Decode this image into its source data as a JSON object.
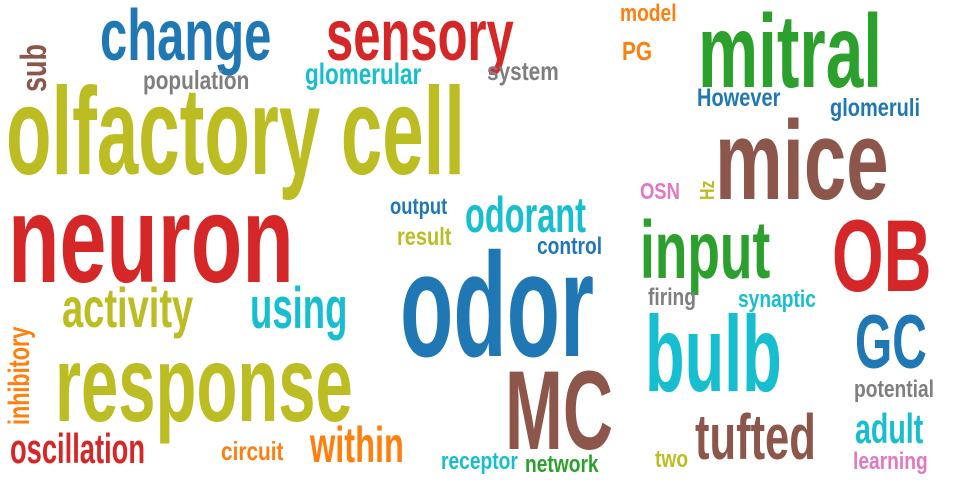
{
  "colors": {
    "olive": "#bcbd22",
    "red": "#d62728",
    "blue": "#1f77b4",
    "green": "#2ca02c",
    "brown": "#8c564b",
    "cyan": "#17becf",
    "orange": "#ff7f0e",
    "gray": "#7f7f7f",
    "pink": "#e377c2"
  },
  "words": [
    {
      "text": "olfactory cell",
      "color": "olive"
    },
    {
      "text": "neuron",
      "color": "red"
    },
    {
      "text": "response",
      "color": "olive"
    },
    {
      "text": "odor",
      "color": "blue"
    },
    {
      "text": "mitral",
      "color": "green"
    },
    {
      "text": "mice",
      "color": "brown"
    },
    {
      "text": "sensory",
      "color": "red"
    },
    {
      "text": "change",
      "color": "blue"
    },
    {
      "text": "bulb",
      "color": "cyan"
    },
    {
      "text": "input",
      "color": "green"
    },
    {
      "text": "OB",
      "color": "red"
    },
    {
      "text": "MC",
      "color": "brown"
    },
    {
      "text": "activity",
      "color": "olive"
    },
    {
      "text": "using",
      "color": "cyan"
    },
    {
      "text": "odorant",
      "color": "cyan"
    },
    {
      "text": "tufted",
      "color": "brown"
    },
    {
      "text": "GC",
      "color": "blue"
    },
    {
      "text": "oscillation",
      "color": "red"
    },
    {
      "text": "within",
      "color": "orange"
    },
    {
      "text": "glomerular",
      "color": "cyan"
    },
    {
      "text": "adult",
      "color": "cyan"
    },
    {
      "text": "sub",
      "color": "brown"
    },
    {
      "text": "inhibitory",
      "color": "orange"
    },
    {
      "text": "population",
      "color": "gray"
    },
    {
      "text": "system",
      "color": "gray"
    },
    {
      "text": "model",
      "color": "orange"
    },
    {
      "text": "PG",
      "color": "orange"
    },
    {
      "text": "However",
      "color": "blue"
    },
    {
      "text": "glomeruli",
      "color": "blue"
    },
    {
      "text": "OSN",
      "color": "pink"
    },
    {
      "text": "Hz",
      "color": "olive"
    },
    {
      "text": "output",
      "color": "blue"
    },
    {
      "text": "result",
      "color": "olive"
    },
    {
      "text": "control",
      "color": "blue"
    },
    {
      "text": "firing",
      "color": "gray"
    },
    {
      "text": "synaptic",
      "color": "cyan"
    },
    {
      "text": "potential",
      "color": "gray"
    },
    {
      "text": "circuit",
      "color": "orange"
    },
    {
      "text": "receptor",
      "color": "cyan"
    },
    {
      "text": "network",
      "color": "green"
    },
    {
      "text": "two",
      "color": "olive"
    },
    {
      "text": "learning",
      "color": "pink"
    }
  ]
}
